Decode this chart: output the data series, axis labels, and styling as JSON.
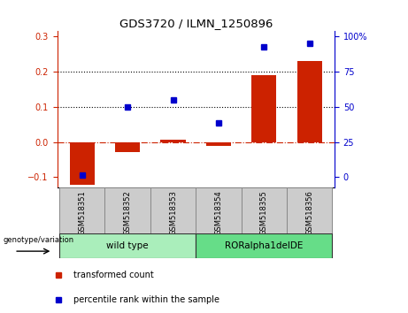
{
  "title": "GDS3720 / ILMN_1250896",
  "samples": [
    "GSM518351",
    "GSM518352",
    "GSM518353",
    "GSM518354",
    "GSM518355",
    "GSM518356"
  ],
  "red_bars": [
    -0.122,
    -0.028,
    0.008,
    -0.012,
    0.19,
    0.23
  ],
  "blue_dots": [
    -0.095,
    0.1,
    0.12,
    0.055,
    0.27,
    0.28
  ],
  "ylim": [
    -0.13,
    0.315
  ],
  "yticks_left": [
    -0.1,
    0.0,
    0.1,
    0.2,
    0.3
  ],
  "yticks_right": [
    0,
    25,
    50,
    75,
    100
  ],
  "yticks_right_vals": [
    -0.1,
    0.0,
    0.1,
    0.2,
    0.3
  ],
  "hlines": [
    0.1,
    0.2
  ],
  "hline_zero": 0.0,
  "bar_color": "#cc2200",
  "dot_color": "#0000cc",
  "zero_line_color": "#cc2200",
  "group1_label": "wild type",
  "group1_color": "#aaeebb",
  "group2_label": "RORalpha1delDE",
  "group2_color": "#66dd88",
  "genotype_label": "genotype/variation",
  "legend1": "transformed count",
  "legend2": "percentile rank within the sample",
  "title_fontsize": 9.5,
  "tick_fontsize": 7,
  "label_fontsize": 7,
  "sample_fontsize": 6,
  "group_fontsize": 7.5
}
